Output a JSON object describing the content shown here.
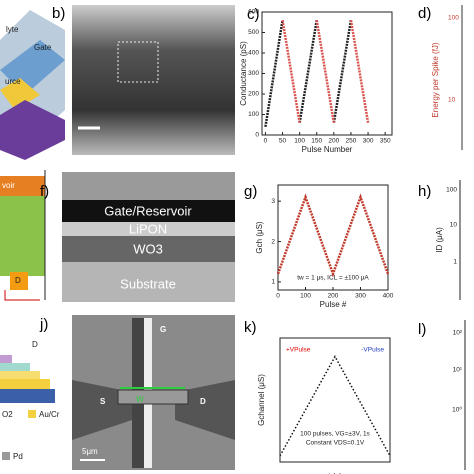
{
  "panels": {
    "a": {
      "texts": [
        "lyte",
        "Gate",
        "urce"
      ]
    },
    "b": {
      "label": "b)"
    },
    "d": {
      "label": "d)",
      "axis_label": "Energy per Spike (fJ)",
      "ticks": [
        "100",
        "10"
      ]
    },
    "e": {
      "texts": [
        "voir",
        "D"
      ]
    },
    "f": {
      "label": "f)",
      "layers": [
        "Gate/Reservoir",
        "LiPON",
        "WO3",
        "Substrate"
      ]
    },
    "h": {
      "label": "h)",
      "ticks": [
        "100",
        "10",
        "1"
      ],
      "axis_label": "ID (μA)"
    },
    "i": {
      "texts": [
        "D",
        "O2",
        "Au/Cr",
        "Pd"
      ]
    },
    "j": {
      "label": "j)",
      "texts": [
        "G",
        "S",
        "D",
        "W",
        "5μm"
      ]
    },
    "l": {
      "label": "l)",
      "ticks": [
        "10²",
        "10¹",
        "10⁰"
      ]
    }
  },
  "chart_data": [
    {
      "type": "line",
      "label": "c)",
      "xlabel": "Pulse Number",
      "ylabel": "Conductance (pS)",
      "xlim": [
        -10,
        370
      ],
      "ylim": [
        0,
        600
      ],
      "xticks": [
        0,
        50,
        100,
        150,
        200,
        250,
        300,
        350
      ],
      "yticks": [
        0,
        100,
        200,
        300,
        400,
        500,
        600
      ],
      "series": [
        {
          "color": "#222222",
          "x": [
            0,
            50,
            null,
            100,
            150,
            null,
            200,
            250
          ],
          "values": [
            40,
            560,
            null,
            60,
            560,
            null,
            60,
            560
          ]
        },
        {
          "color": "#d9534f",
          "x": [
            50,
            100,
            null,
            150,
            200,
            null,
            250,
            300
          ],
          "values": [
            560,
            60,
            null,
            560,
            60,
            null,
            560,
            60
          ]
        }
      ]
    },
    {
      "type": "line",
      "label": "g)",
      "xlabel": "Pulse #",
      "ylabel": "Gch (μS)",
      "annotation": "tw = 1 μs, ICL = ±100 μA",
      "xlim": [
        0,
        400
      ],
      "ylim": [
        0.8,
        3.4
      ],
      "xticks": [
        0,
        100,
        200,
        300,
        400
      ],
      "yticks": [
        1,
        2,
        3
      ],
      "series": [
        {
          "color": "#c0392b",
          "x": [
            0,
            100,
            200,
            300,
            400
          ],
          "values": [
            1.2,
            3.1,
            1.2,
            3.1,
            1.2
          ]
        }
      ]
    },
    {
      "type": "line",
      "label": "k)",
      "xlabel": "t (s)",
      "ylabel": "Gchannel (μS)",
      "annotations": [
        "+VPulse",
        "-VPulse",
        "100 pulses, VG=±3V, 1s",
        "Constant VDS=0.1V"
      ],
      "xlim": [
        0,
        600
      ],
      "ylim": [
        0,
        1
      ],
      "series": [
        {
          "color": "#111111",
          "dashed": true,
          "x": [
            0,
            300,
            600
          ],
          "values": [
            0.05,
            0.85,
            0.05
          ]
        }
      ]
    }
  ]
}
